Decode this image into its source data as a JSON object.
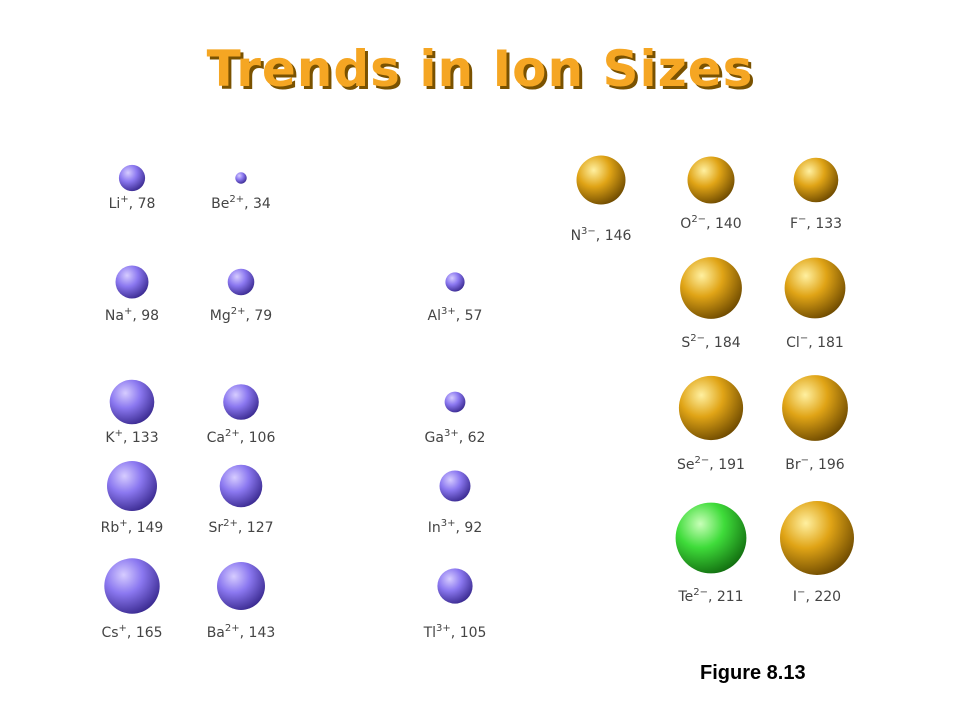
{
  "title": "Trends in Ion Sizes",
  "figure_label": "Figure 8.13",
  "colors": {
    "title": "#f5a623",
    "cation": "#8b78f0",
    "anion": "#e0a416",
    "highlight": "#3fdc3a"
  },
  "ions": [
    {
      "symbol": "Li",
      "charge": "+",
      "radius": 78,
      "type": "cation"
    },
    {
      "symbol": "Be",
      "charge": "2+",
      "radius": 34,
      "type": "cation"
    },
    {
      "symbol": "Na",
      "charge": "+",
      "radius": 98,
      "type": "cation"
    },
    {
      "symbol": "Mg",
      "charge": "2+",
      "radius": 79,
      "type": "cation"
    },
    {
      "symbol": "Al",
      "charge": "3+",
      "radius": 57,
      "type": "cation"
    },
    {
      "symbol": "K",
      "charge": "+",
      "radius": 133,
      "type": "cation"
    },
    {
      "symbol": "Ca",
      "charge": "2+",
      "radius": 106,
      "type": "cation"
    },
    {
      "symbol": "Ga",
      "charge": "3+",
      "radius": 62,
      "type": "cation"
    },
    {
      "symbol": "Rb",
      "charge": "+",
      "radius": 149,
      "type": "cation"
    },
    {
      "symbol": "Sr",
      "charge": "2+",
      "radius": 127,
      "type": "cation"
    },
    {
      "symbol": "In",
      "charge": "3+",
      "radius": 92,
      "type": "cation"
    },
    {
      "symbol": "Cs",
      "charge": "+",
      "radius": 165,
      "type": "cation"
    },
    {
      "symbol": "Ba",
      "charge": "2+",
      "radius": 143,
      "type": "cation"
    },
    {
      "symbol": "Tl",
      "charge": "3+",
      "radius": 105,
      "type": "cation"
    },
    {
      "symbol": "N",
      "charge": "3−",
      "radius": 146,
      "type": "anion"
    },
    {
      "symbol": "O",
      "charge": "2−",
      "radius": 140,
      "type": "anion"
    },
    {
      "symbol": "F",
      "charge": "−",
      "radius": 133,
      "type": "anion"
    },
    {
      "symbol": "S",
      "charge": "2−",
      "radius": 184,
      "type": "anion"
    },
    {
      "symbol": "Cl",
      "charge": "−",
      "radius": 181,
      "type": "anion"
    },
    {
      "symbol": "Se",
      "charge": "2−",
      "radius": 191,
      "type": "anion"
    },
    {
      "symbol": "Br",
      "charge": "−",
      "radius": 196,
      "type": "anion"
    },
    {
      "symbol": "Te",
      "charge": "2−",
      "radius": 211,
      "type": "highlight"
    },
    {
      "symbol": "I",
      "charge": "−",
      "radius": 220,
      "type": "anion"
    }
  ]
}
